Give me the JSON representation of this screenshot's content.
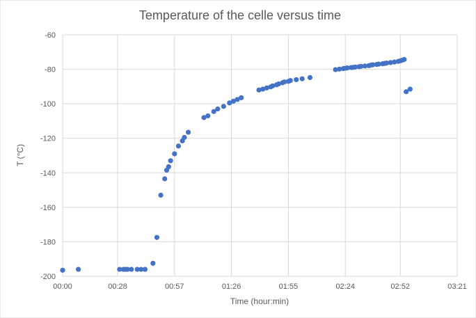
{
  "chart_data": {
    "type": "scatter",
    "title": "Temperature of the celle versus time",
    "xlabel": "Time (hour:min)",
    "ylabel": "T (°C)",
    "x_unit": "hh:mm",
    "xlim": [
      "00:00",
      "03:21"
    ],
    "ylim": [
      -200,
      -60
    ],
    "x_ticks": [
      "00:00",
      "00:28",
      "00:57",
      "01:26",
      "01:55",
      "02:24",
      "02:52",
      "03:21"
    ],
    "y_ticks": [
      -60,
      -80,
      -100,
      -120,
      -140,
      -160,
      -180,
      -200
    ],
    "grid": true,
    "legend": "none",
    "series": [
      {
        "color": "#4472c4",
        "points": [
          [
            "00:00",
            -196.5
          ],
          [
            "00:08",
            -196.0
          ],
          [
            "00:29",
            -196.0
          ],
          [
            "00:31",
            -196.0
          ],
          [
            "00:32",
            -196.0
          ],
          [
            "00:33",
            -196.0
          ],
          [
            "00:35",
            -196.0
          ],
          [
            "00:38",
            -196.0
          ],
          [
            "00:40",
            -196.0
          ],
          [
            "00:42",
            -196.0
          ],
          [
            "00:46",
            -192.5
          ],
          [
            "00:48",
            -177.5
          ],
          [
            "00:50",
            -153.0
          ],
          [
            "00:52",
            -143.5
          ],
          [
            "00:53",
            -138.5
          ],
          [
            "00:54",
            -136.5
          ],
          [
            "00:55",
            -133.0
          ],
          [
            "00:57",
            -129.0
          ],
          [
            "00:59",
            -124.5
          ],
          [
            "01:01",
            -121.5
          ],
          [
            "01:02",
            -119.5
          ],
          [
            "01:04",
            -116.5
          ],
          [
            "01:12",
            -108.0
          ],
          [
            "01:14",
            -107.0
          ],
          [
            "01:17",
            -104.5
          ],
          [
            "01:19",
            -103.0
          ],
          [
            "01:22",
            -101.5
          ],
          [
            "01:25",
            -99.5
          ],
          [
            "01:27",
            -98.5
          ],
          [
            "01:29",
            -97.5
          ],
          [
            "01:31",
            -96.5
          ],
          [
            "01:40",
            -92.0
          ],
          [
            "01:42",
            -91.5
          ],
          [
            "01:44",
            -90.8
          ],
          [
            "01:46",
            -90.2
          ],
          [
            "01:47",
            -89.6
          ],
          [
            "01:49",
            -89.0
          ],
          [
            "01:50",
            -88.5
          ],
          [
            "01:52",
            -87.8
          ],
          [
            "01:53",
            -87.3
          ],
          [
            "01:55",
            -87.0
          ],
          [
            "01:56",
            -86.5
          ],
          [
            "01:59",
            -86.0
          ],
          [
            "02:02",
            -85.5
          ],
          [
            "02:06",
            -84.8
          ],
          [
            "02:19",
            -80.2
          ],
          [
            "02:21",
            -79.9
          ],
          [
            "02:23",
            -79.6
          ],
          [
            "02:24",
            -79.4
          ],
          [
            "02:25",
            -79.2
          ],
          [
            "02:27",
            -79.0
          ],
          [
            "02:28",
            -78.9
          ],
          [
            "02:29",
            -78.7
          ],
          [
            "02:31",
            -78.5
          ],
          [
            "02:32",
            -78.3
          ],
          [
            "02:34",
            -78.1
          ],
          [
            "02:36",
            -77.9
          ],
          [
            "02:37",
            -77.6
          ],
          [
            "02:38",
            -77.4
          ],
          [
            "02:40",
            -77.2
          ],
          [
            "02:41",
            -77.0
          ],
          [
            "02:43",
            -76.8
          ],
          [
            "02:44",
            -76.6
          ],
          [
            "02:45",
            -76.4
          ],
          [
            "02:47",
            -76.1
          ],
          [
            "02:49",
            -75.8
          ],
          [
            "02:51",
            -75.4
          ],
          [
            "02:52",
            -75.1
          ],
          [
            "02:53",
            -74.7
          ],
          [
            "02:54",
            -74.3
          ],
          [
            "02:55",
            -93.0
          ],
          [
            "02:57",
            -91.5
          ]
        ]
      }
    ]
  }
}
